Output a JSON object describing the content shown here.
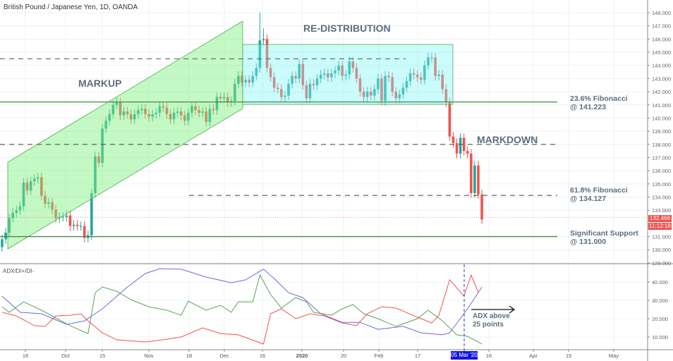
{
  "header": {
    "title": "British Pound / Japanese Yen, 1D, OANDA"
  },
  "indicator": {
    "label": "ADX/DI+/DI-"
  },
  "annotations": {
    "markup": "MARKUP",
    "redistribution": "RE-DISTRIBUTION",
    "markdown": "MARKDOWN",
    "fib236_line1": "23.6% Fibonacci",
    "fib236_line2": "@ 141.223",
    "fib618_line1": "61.8% Fibonacci",
    "fib618_line2": "@ 134.127",
    "support_line1": "Significant Support",
    "support_line2": "@ 131.000",
    "adx_line1": "ADX above",
    "adx_line2": "25 points"
  },
  "price_tag": {
    "price": "132.466",
    "countdown": "11:12:18"
  },
  "cursor_date": "05 Mar '20",
  "colors": {
    "up": "#26a69a",
    "down": "#ef5350",
    "adx": "#6b6bdc",
    "di_plus": "#5aa35a",
    "di_minus": "#ef5350",
    "markup_box": "#7cf07c",
    "redistribution_box": "#7cf5f5",
    "levels": "#3f8f3f",
    "annotation": "#5d6d7e"
  },
  "chart_data": [
    {
      "type": "candlestick",
      "title": "British Pound / Japanese Yen, 1D, OANDA",
      "ylim": [
        129,
        148.5
      ],
      "y_ticks": [
        "148.000",
        "147.000",
        "146.000",
        "145.000",
        "144.000",
        "143.000",
        "142.000",
        "141.000",
        "140.000",
        "139.000",
        "138.000",
        "137.000",
        "136.000",
        "135.000",
        "134.000",
        "133.000",
        "131.000",
        "130.000",
        "129.000"
      ],
      "x_ticks": [
        "16",
        "Oct",
        "15",
        "Nov",
        "18",
        "Dec",
        "16",
        "2020",
        "20",
        "Feb",
        "17",
        "16",
        "Apr",
        "15",
        "May"
      ],
      "grid": true,
      "closes": [
        130.8,
        131.3,
        132.4,
        132.8,
        133.0,
        133.3,
        135.1,
        134.5,
        135.2,
        135.4,
        135.5,
        134.1,
        133.5,
        133.6,
        133.05,
        132.4,
        132.5,
        132.5,
        132.6,
        131.8,
        131.9,
        131.8,
        131.8,
        130.9,
        131.1,
        134.3,
        137.1,
        136.6,
        139.2,
        139.8,
        140.3,
        141.0,
        141.2,
        140.2,
        140.5,
        140.3,
        139.9,
        140.3,
        140.6,
        140.7,
        140.3,
        140.1,
        140.3,
        140.4,
        140.9,
        140.8,
        140.3,
        139.9,
        140.4,
        140.5,
        140.2,
        139.8,
        140.4,
        140.9,
        140.6,
        140.4,
        140.5,
        139.7,
        140.7,
        140.6,
        141.6,
        141.5,
        141.6,
        141.2,
        141.3,
        142.6,
        143.2,
        142.7,
        142.9,
        142.7,
        143.2,
        143.8,
        145.9,
        146.0,
        143.8,
        143.1,
        142.3,
        142.2,
        141.6,
        141.7,
        142.6,
        143.2,
        143.0,
        144.1,
        142.5,
        141.5,
        142.6,
        142.5,
        143.0,
        143.3,
        143.4,
        143.1,
        143.4,
        143.6,
        144.0,
        143.2,
        143.3,
        144.3,
        143.8,
        143.0,
        142.0,
        141.6,
        142.0,
        141.7,
        142.2,
        143.0,
        141.3,
        143.2,
        143.1,
        142.0,
        141.5,
        141.8,
        142.3,
        142.8,
        143.4,
        143.3,
        143.1,
        142.9,
        144.0,
        144.6,
        144.6,
        143.2,
        143.3,
        142.2,
        141.2,
        138.6,
        138.1,
        137.3,
        138.5,
        137.5,
        137.3,
        134.3,
        136.4,
        134.2,
        132.3
      ],
      "first_open": 130.2,
      "high_overrides": {
        "72": 148.0,
        "73": 146.8
      },
      "levels": [
        {
          "name": "fib-23.6",
          "value": 141.223,
          "style": "solid"
        },
        {
          "name": "support",
          "value": 131.0,
          "style": "solid"
        },
        {
          "name": "resistance-dashed",
          "value": 144.5,
          "style": "dashed"
        },
        {
          "name": "mid-dashed",
          "value": 138.0,
          "style": "dashed"
        },
        {
          "name": "fib-61.8",
          "value": 134.127,
          "style": "dashed"
        }
      ],
      "last_price": 132.466
    },
    {
      "type": "line",
      "title": "ADX/DI+/DI-",
      "ylim": [
        3,
        48
      ],
      "y_ticks": [
        "40.000",
        "30.000",
        "20.000",
        "10.000"
      ],
      "series": [
        {
          "key": "adx",
          "points": [
            [
              0,
              32.3
            ],
            [
              5,
              23.5
            ],
            [
              11,
              22.7
            ],
            [
              18,
              16.9
            ],
            [
              23,
              18.8
            ],
            [
              28,
              25.4
            ],
            [
              35,
              37.3
            ],
            [
              40,
              44.6
            ],
            [
              44,
              47.3
            ],
            [
              50,
              47
            ],
            [
              57,
              42.7
            ],
            [
              64,
              39.6
            ],
            [
              68,
              41.2
            ],
            [
              73,
              47
            ],
            [
              76,
              41.9
            ],
            [
              80,
              34.2
            ],
            [
              84,
              31.5
            ],
            [
              89,
              22.7
            ],
            [
              95,
              18
            ],
            [
              100,
              18
            ],
            [
              105,
              14.2
            ],
            [
              112,
              15.8
            ],
            [
              117,
              12.3
            ],
            [
              123,
              11.2
            ],
            [
              125,
              12.3
            ],
            [
              130,
              25.4
            ],
            [
              134,
              37.3
            ]
          ]
        },
        {
          "key": "di_plus",
          "points": [
            [
              0,
              26.5
            ],
            [
              2,
              23.5
            ],
            [
              6,
              29.2
            ],
            [
              11,
              24.6
            ],
            [
              19,
              16.2
            ],
            [
              24,
              11.9
            ],
            [
              26,
              34.2
            ],
            [
              28,
              37.3
            ],
            [
              32,
              35
            ],
            [
              36,
              30.4
            ],
            [
              41,
              26.5
            ],
            [
              46,
              24.6
            ],
            [
              50,
              21.9
            ],
            [
              52,
              29.6
            ],
            [
              57,
              24.6
            ],
            [
              61,
              27.3
            ],
            [
              64,
              23.5
            ],
            [
              66,
              29.2
            ],
            [
              70,
              29.2
            ],
            [
              72,
              43.8
            ],
            [
              75,
              33.1
            ],
            [
              78,
              25.8
            ],
            [
              82,
              31.5
            ],
            [
              85,
              29.2
            ],
            [
              87,
              23.5
            ],
            [
              92,
              21.9
            ],
            [
              95,
              25.4
            ],
            [
              98,
              27.7
            ],
            [
              101,
              22.7
            ],
            [
              105,
              20
            ],
            [
              110,
              15.8
            ],
            [
              116,
              20
            ],
            [
              119,
              24.6
            ],
            [
              123,
              18.8
            ],
            [
              127,
              11.2
            ],
            [
              130,
              10.4
            ],
            [
              134,
              6.2
            ]
          ]
        },
        {
          "key": "di_minus",
          "points": [
            [
              0,
              23.5
            ],
            [
              4,
              21.5
            ],
            [
              9,
              16.2
            ],
            [
              12,
              15.8
            ],
            [
              15,
              21.5
            ],
            [
              19,
              21.9
            ],
            [
              22,
              22.7
            ],
            [
              24,
              18.8
            ],
            [
              28,
              12.3
            ],
            [
              32,
              8.5
            ],
            [
              40,
              7.3
            ],
            [
              45,
              8.5
            ],
            [
              50,
              10
            ],
            [
              56,
              15
            ],
            [
              61,
              11.9
            ],
            [
              66,
              11.2
            ],
            [
              73,
              6.2
            ],
            [
              75,
              22.7
            ],
            [
              78,
              25.4
            ],
            [
              82,
              20
            ],
            [
              86,
              22.7
            ],
            [
              90,
              21.5
            ],
            [
              95,
              17.7
            ],
            [
              99,
              16.2
            ],
            [
              102,
              22.7
            ],
            [
              106,
              26.5
            ],
            [
              110,
              25.8
            ],
            [
              116,
              20.8
            ],
            [
              120,
              17.7
            ],
            [
              122,
              21.9
            ],
            [
              125,
              41.2
            ],
            [
              129,
              32.3
            ],
            [
              131,
              43.8
            ],
            [
              133,
              34.2
            ]
          ]
        }
      ]
    }
  ]
}
